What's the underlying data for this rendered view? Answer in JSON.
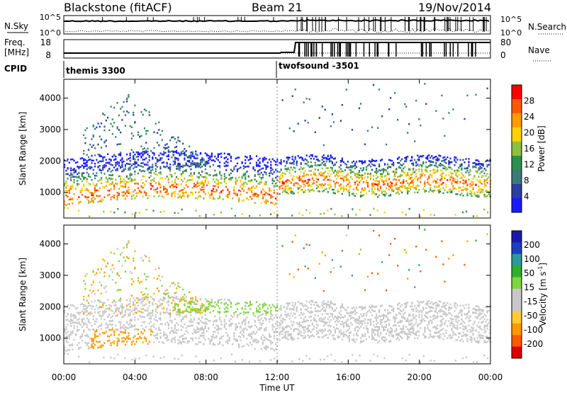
{
  "header": {
    "radar": "Blackstone (fitACF)",
    "beam": "Beam 21",
    "date": "19/Nov/2014"
  },
  "noise_panel": {
    "left_label": "N.Sky",
    "right_label": "N.Search",
    "right_ticks": [
      "10^5",
      "10^0"
    ],
    "left_ticks": [
      "10^5",
      "10^0"
    ]
  },
  "freq_panel": {
    "left_label_line1": "Freq.",
    "left_label_line2": "[MHz]",
    "left_ticks": [
      "18",
      "8"
    ],
    "right_label": "Nave",
    "right_ticks": [
      "80",
      "0"
    ]
  },
  "cpid": {
    "label": "CPID",
    "programs": [
      "themis 3300",
      "twofsound -3501"
    ]
  },
  "chart_data": [
    {
      "type": "heatmap",
      "title": "",
      "ylabel": "Slant Range [km]",
      "xlabel": "",
      "ylim": [
        180,
        4600
      ],
      "yticks": [
        "1000",
        "2000",
        "3000",
        "4000"
      ],
      "colorbar": {
        "label": "Power [dB]",
        "ticks": [
          "28",
          "24",
          "20",
          "16",
          "12",
          "8",
          "4"
        ],
        "range": [
          0,
          30
        ],
        "colors": [
          "#1a1aff",
          "#2a3fa0",
          "#3c7a7a",
          "#2f8f4f",
          "#8fbf3f",
          "#ffd200",
          "#ff9a00",
          "#ff5a00",
          "#ff0000"
        ]
      }
    },
    {
      "type": "heatmap",
      "title": "",
      "ylabel": "Slant Range [km]",
      "xlabel": "Time UT",
      "ylim": [
        180,
        4600
      ],
      "yticks": [
        "1000",
        "2000",
        "3000",
        "4000"
      ],
      "xticks": [
        "00:00",
        "04:00",
        "08:00",
        "12:00",
        "16:00",
        "20:00",
        "00:00"
      ],
      "colorbar": {
        "label": "Velocity [m s",
        "label_sup": "-1",
        "label_end": "]",
        "ticks": [
          "200",
          "100",
          "50",
          "15",
          "-15",
          "-50",
          "-100",
          "-200"
        ],
        "range": [
          -250,
          250
        ],
        "colors": [
          "#dd0000",
          "#ff5a00",
          "#ff9a00",
          "#ffcc33",
          "#c8c8c8",
          "#c8c8c8",
          "#7fd63f",
          "#2fae2f",
          "#2a9a9a",
          "#1a3fbf",
          "#1a1aaa"
        ]
      }
    }
  ]
}
